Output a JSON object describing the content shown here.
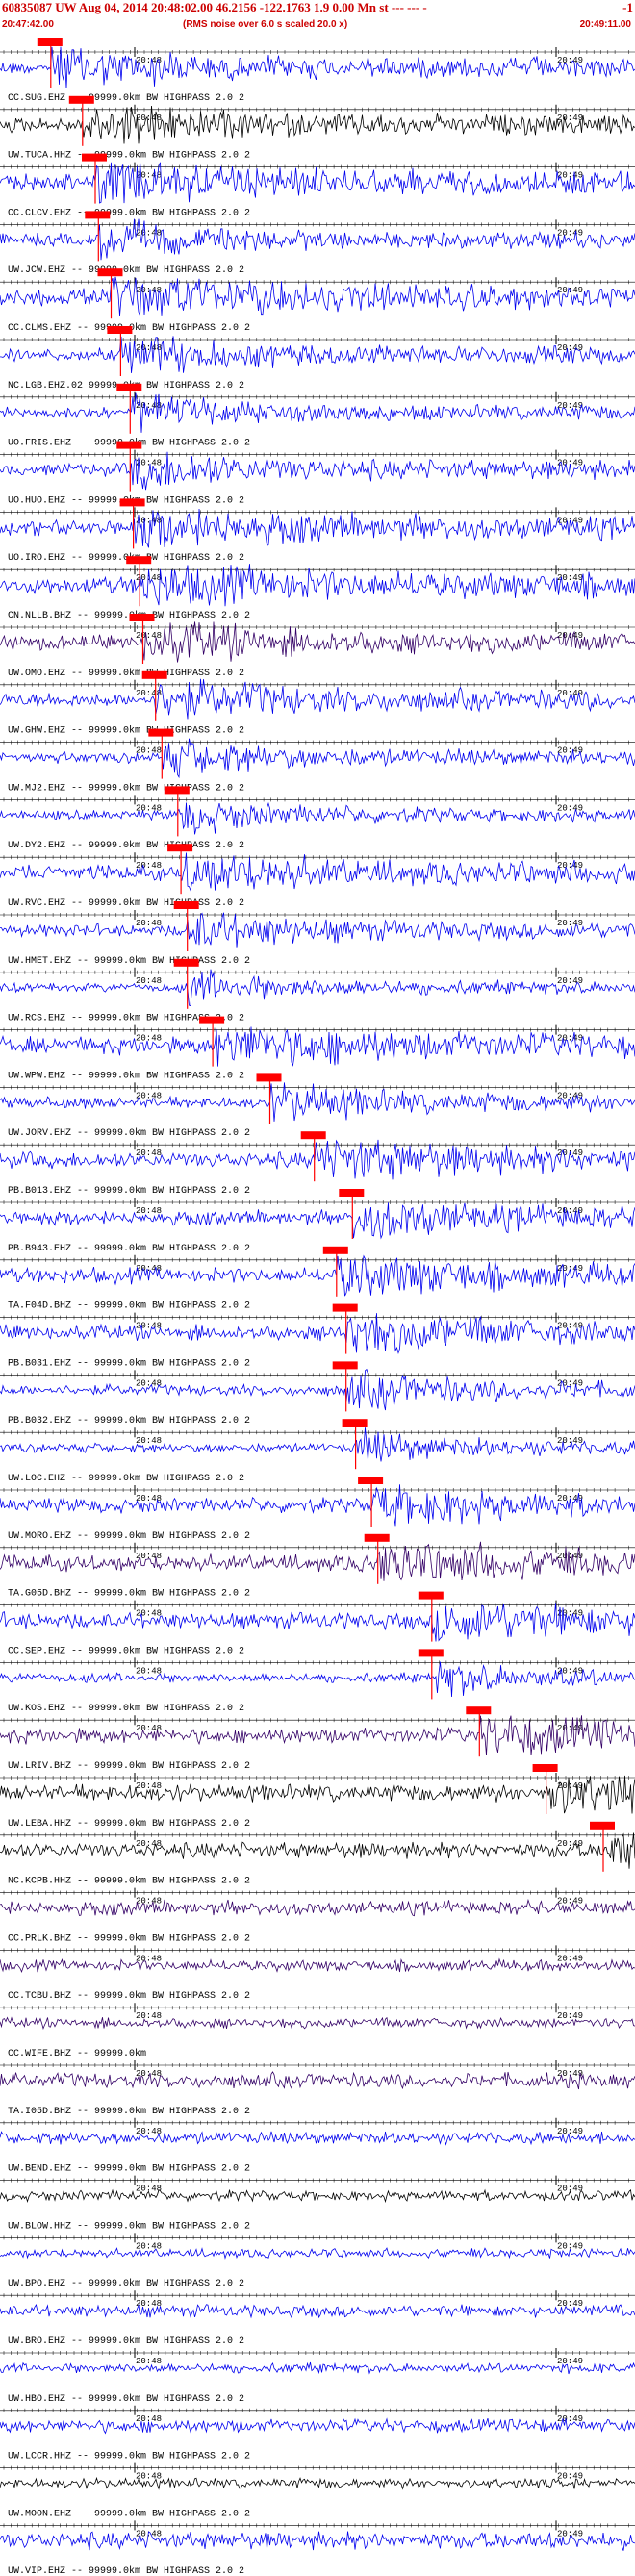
{
  "header": {
    "title": "60835087 UW Aug 04, 2014 20:48:02.00   46.2156 -122.1763  1.9 0.00 Mn st --- --- -",
    "right_mark": "-1",
    "subtitle": "(RMS noise over 6.0 s scaled 20.0 x)",
    "start_time": "20:47:42.00",
    "end_time": "20:49:11.00"
  },
  "time_marks": {
    "m1": "20:48",
    "m2": "20:49"
  },
  "colors": {
    "trace_blue": "#0000ee",
    "trace_black": "#000000",
    "trace_purple": "#330066",
    "pick_red": "#ff0000",
    "label": "#000000"
  },
  "channels": [
    {
      "label": "",
      "color": "blue",
      "pick": 0.08
    },
    {
      "label": "CC.SUG.EHZ -- 99999.0km BW  HIGHPASS  2.0  2",
      "color": "black",
      "pick": 0.13
    },
    {
      "label": "UW.TUCA.HHZ -- 99999.0km BW  HIGHPASS  2.0  2",
      "color": "blue",
      "pick": 0.15
    },
    {
      "label": "CC.CLCV.EHZ -- 99999.0km BW  HIGHPASS  2.0  2",
      "color": "blue",
      "pick": 0.155
    },
    {
      "label": "UW.JCW.EHZ -- 99999.0km BW  HIGHPASS  2.0  2",
      "color": "blue",
      "pick": 0.175
    },
    {
      "label": "CC.CLMS.EHZ -- 99999.0km BW  HIGHPASS  2.0  2",
      "color": "blue",
      "pick": 0.19
    },
    {
      "label": "NC.LGB.EHZ.02 99999.0km BW  HIGHPASS  2.0  2",
      "color": "blue",
      "pick": 0.205
    },
    {
      "label": "UO.FRIS.EHZ -- 99999.0km BW  HIGHPASS  2.0  2",
      "color": "blue",
      "pick": 0.205
    },
    {
      "label": "UO.HUO.EHZ -- 99999.0km BW  HIGHPASS  2.0  2",
      "color": "blue",
      "pick": 0.21
    },
    {
      "label": "UO.IRO.EHZ -- 99999.0km BW  HIGHPASS  2.0  2",
      "color": "blue",
      "pick": 0.22
    },
    {
      "label": "CN.NLLB.BHZ -- 99999.0km BW  HIGHPASS  2.0  2",
      "color": "purple",
      "pick": 0.225
    },
    {
      "label": "UW.OMO.EHZ -- 99999.0km BW  HIGHPASS  2.0  2",
      "color": "blue",
      "pick": 0.245
    },
    {
      "label": "UW.GHW.EHZ -- 99999.0km BW  HIGHPASS  2.0  2",
      "color": "blue",
      "pick": 0.255
    },
    {
      "label": "UW.MJ2.EHZ -- 99999.0km BW  HIGHPASS  2.0  2",
      "color": "blue",
      "pick": 0.28
    },
    {
      "label": "UW.DY2.EHZ -- 99999.0km BW  HIGHPASS  2.0  2",
      "color": "blue",
      "pick": 0.285
    },
    {
      "label": "UW.RVC.EHZ -- 99999.0km BW  HIGHPASS  2.0  2",
      "color": "blue",
      "pick": 0.295
    },
    {
      "label": "UW.HMET.EHZ -- 99999.0km BW  HIGHPASS  2.0  2",
      "color": "blue",
      "pick": 0.295
    },
    {
      "label": "UW.RCS.EHZ -- 99999.0km BW  HIGHPASS  2.0  2",
      "color": "blue",
      "pick": 0.335
    },
    {
      "label": "UW.WPW.EHZ -- 99999.0km BW  HIGHPASS  2.0  2",
      "color": "blue",
      "pick": 0.425
    },
    {
      "label": "UW.JORV.EHZ -- 99999.0km BW  HIGHPASS  2.0  2",
      "color": "blue",
      "pick": 0.495
    },
    {
      "label": "PB.B013.EHZ -- 99999.0km BW  HIGHPASS  2.0  2",
      "color": "blue",
      "pick": 0.555
    },
    {
      "label": "PB.B943.EHZ -- 99999.0km BW  HIGHPASS  2.0  2",
      "color": "blue",
      "pick": 0.53
    },
    {
      "label": "TA.F04D.BHZ -- 99999.0km BW  HIGHPASS  2.0  2",
      "color": "blue",
      "pick": 0.545
    },
    {
      "label": "PB.B031.EHZ -- 99999.0km BW  HIGHPASS  2.0  2",
      "color": "blue",
      "pick": 0.545
    },
    {
      "label": "PB.B032.EHZ -- 99999.0km BW  HIGHPASS  2.0  2",
      "color": "blue",
      "pick": 0.56
    },
    {
      "label": "UW.LOC.EHZ -- 99999.0km BW  HIGHPASS  2.0  2",
      "color": "blue",
      "pick": 0.585
    },
    {
      "label": "UW.MORO.EHZ -- 99999.0km BW  HIGHPASS  2.0  2",
      "color": "purple",
      "pick": 0.595
    },
    {
      "label": "TA.G05D.BHZ -- 99999.0km BW  HIGHPASS  2.0  2",
      "color": "blue",
      "pick": 0.68
    },
    {
      "label": "CC.SEP.EHZ -- 99999.0km BW  HIGHPASS  2.0  2",
      "color": "blue",
      "pick": 0.68
    },
    {
      "label": "UW.KOS.EHZ -- 99999.0km BW  HIGHPASS  2.0  2",
      "color": "purple",
      "pick": 0.755
    },
    {
      "label": "UW.LRIV.BHZ -- 99999.0km BW  HIGHPASS  2.0  2",
      "color": "black",
      "pick": 0.86
    },
    {
      "label": "UW.LEBA.HHZ -- 99999.0km BW  HIGHPASS  2.0  2",
      "color": "black",
      "pick": 0.95
    },
    {
      "label": "NC.KCPB.HHZ -- 99999.0km BW  HIGHPASS  2.0  2",
      "color": "purple",
      "pick": null
    },
    {
      "label": "CC.PRLK.BHZ -- 99999.0km BW  HIGHPASS  2.0  2",
      "color": "purple",
      "pick": null
    },
    {
      "label": "CC.TCBU.BHZ -- 99999.0km BW  HIGHPASS  2.0  2",
      "color": "purple",
      "pick": null
    },
    {
      "label": "CC.WIFE.BHZ -- 99999.0km",
      "color": "purple",
      "pick": null
    },
    {
      "label": "TA.I05D.BHZ -- 99999.0km BW  HIGHPASS  2.0  2",
      "color": "blue",
      "pick": null
    },
    {
      "label": "UW.BEND.EHZ -- 99999.0km BW  HIGHPASS  2.0  2",
      "color": "black",
      "pick": null
    },
    {
      "label": "UW.BLOW.HHZ -- 99999.0km BW  HIGHPASS  2.0  2",
      "color": "blue",
      "pick": null
    },
    {
      "label": "UW.BPO.EHZ -- 99999.0km BW  HIGHPASS  2.0  2",
      "color": "blue",
      "pick": null
    },
    {
      "label": "UW.BRO.EHZ -- 99999.0km BW  HIGHPASS  2.0  2",
      "color": "blue",
      "pick": null
    },
    {
      "label": "UW.HBO.EHZ -- 99999.0km BW  HIGHPASS  2.0  2",
      "color": "blue",
      "pick": null
    },
    {
      "label": "UW.LCCR.HHZ -- 99999.0km BW  HIGHPASS  2.0  2",
      "color": "black",
      "pick": null
    },
    {
      "label": "UW.MOON.EHZ -- 99999.0km BW  HIGHPASS  2.0  2",
      "color": "blue",
      "pick": null
    },
    {
      "label": "UW.VIP.EHZ -- 99999.0km BW  HIGHPASS  2.0  2",
      "color": "blue",
      "pick": null
    }
  ]
}
